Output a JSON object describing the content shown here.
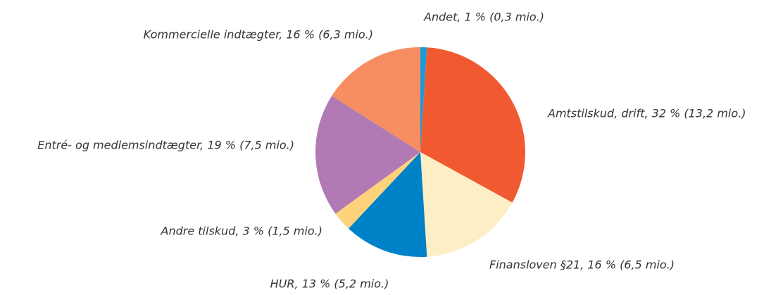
{
  "chart_data": {
    "type": "pie",
    "categories": [
      "Andet, 1 % (0,3 mio.)",
      "Amtstilskud, drift, 32 % (13,2 mio.)",
      "Finansloven §21, 16 % (6,5 mio.)",
      "HUR, 13 % (5,2 mio.)",
      "Andre tilskud, 3 % (1,5 mio.)",
      "Entré- og medlemsindtægter, 19 % (7,5 mio.)",
      "Kommercielle indtægter, 16 % (6,3 mio.)"
    ],
    "values": [
      1,
      32,
      16,
      13,
      3,
      19,
      16
    ],
    "colors": [
      "#1b9ad6",
      "#f15a30",
      "#feeec6",
      "#0082c8",
      "#fed27b",
      "#b27ab5",
      "#f68e62"
    ]
  }
}
